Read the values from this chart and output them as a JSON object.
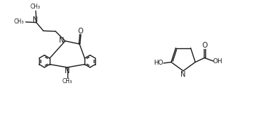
{
  "background_color": "#ffffff",
  "line_color": "#1a1a1a",
  "line_width": 1.0,
  "figsize": [
    3.59,
    1.69
  ],
  "dpi": 100,
  "xlim": [
    0,
    10
  ],
  "ylim": [
    0,
    4.7
  ]
}
